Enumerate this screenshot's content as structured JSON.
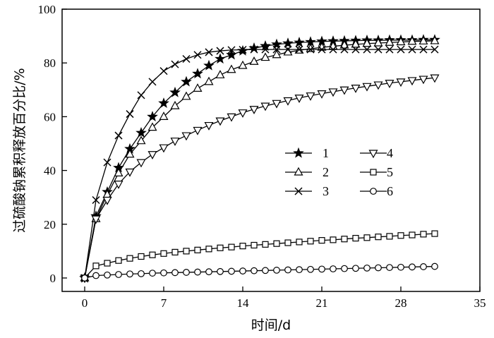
{
  "chart_data": {
    "type": "line",
    "xlabel": "时间/d",
    "ylabel": "过硫酸钠累积释放百分比/%",
    "xlim": [
      -2,
      35
    ],
    "ylim": [
      -5,
      100
    ],
    "xticks": [
      0,
      7,
      14,
      21,
      28,
      35
    ],
    "yticks": [
      0,
      20,
      40,
      60,
      80,
      100
    ],
    "grid": false,
    "legend": "center-right",
    "colors": {
      "line": "#000000",
      "background": "#ffffff"
    },
    "series": [
      {
        "name": "1",
        "marker": "star",
        "x": [
          0,
          1,
          2,
          3,
          4,
          5,
          6,
          7,
          8,
          9,
          10,
          11,
          12,
          13,
          14,
          15,
          16,
          17,
          18,
          19,
          20,
          21,
          22,
          23,
          24,
          25,
          26,
          27,
          28,
          29,
          30,
          31
        ],
        "values": [
          0,
          23,
          32,
          41,
          48,
          54,
          60,
          65,
          69,
          73,
          76,
          79,
          81.5,
          83,
          84.5,
          85.5,
          86.3,
          86.9,
          87.3,
          87.6,
          87.8,
          88,
          88.1,
          88.2,
          88.3,
          88.4,
          88.4,
          88.5,
          88.5,
          88.5,
          88.6,
          88.6
        ]
      },
      {
        "name": "2",
        "marker": "triangle-up",
        "x": [
          0,
          1,
          2,
          3,
          4,
          5,
          6,
          7,
          8,
          9,
          10,
          11,
          12,
          13,
          14,
          15,
          16,
          17,
          18,
          19,
          20,
          21,
          22,
          23,
          24,
          25,
          26,
          27,
          28,
          29,
          30,
          31
        ],
        "values": [
          0,
          22,
          31,
          39,
          46,
          51,
          56,
          60,
          64,
          67.5,
          70.5,
          73,
          75.5,
          77.5,
          79,
          80.5,
          82,
          83,
          84,
          84.7,
          85.3,
          85.8,
          86.2,
          86.6,
          86.9,
          87.2,
          87.4,
          87.6,
          87.8,
          88,
          88.1,
          88.2
        ]
      },
      {
        "name": "3",
        "marker": "x",
        "x": [
          0,
          1,
          2,
          3,
          4,
          5,
          6,
          7,
          8,
          9,
          10,
          11,
          12,
          13,
          14,
          15,
          16,
          17,
          18,
          19,
          20,
          21,
          22,
          23,
          24,
          25,
          26,
          27,
          28,
          29,
          30,
          31
        ],
        "values": [
          0,
          29,
          43,
          53,
          61,
          68,
          73,
          77,
          79.5,
          81.5,
          83,
          84,
          84.5,
          84.8,
          84.9,
          85,
          85,
          85,
          85,
          85,
          85,
          85,
          85,
          85,
          85,
          85,
          85,
          85,
          85,
          85,
          85,
          85
        ]
      },
      {
        "name": "4",
        "marker": "triangle-down",
        "x": [
          0,
          1,
          2,
          3,
          4,
          5,
          6,
          7,
          8,
          9,
          10,
          11,
          12,
          13,
          14,
          15,
          16,
          17,
          18,
          19,
          20,
          21,
          22,
          23,
          24,
          25,
          26,
          27,
          28,
          29,
          30,
          31
        ],
        "values": [
          0,
          22,
          29,
          35,
          39.5,
          43,
          46,
          48.5,
          51,
          53,
          55,
          56.8,
          58.5,
          60,
          61.5,
          62.8,
          64,
          65,
          66,
          67,
          67.8,
          68.6,
          69.3,
          70,
          70.7,
          71.3,
          71.9,
          72.5,
          73,
          73.5,
          74,
          74.5
        ]
      },
      {
        "name": "5",
        "marker": "square",
        "x": [
          0,
          1,
          2,
          3,
          4,
          5,
          6,
          7,
          8,
          9,
          10,
          11,
          12,
          13,
          14,
          15,
          16,
          17,
          18,
          19,
          20,
          21,
          22,
          23,
          24,
          25,
          26,
          27,
          28,
          29,
          30,
          31
        ],
        "values": [
          0,
          4.5,
          5.5,
          6.5,
          7.3,
          8,
          8.6,
          9.1,
          9.6,
          10,
          10.4,
          10.8,
          11.2,
          11.5,
          11.9,
          12.2,
          12.5,
          12.8,
          13.1,
          13.4,
          13.7,
          14,
          14.2,
          14.5,
          14.8,
          15,
          15.3,
          15.5,
          15.8,
          16,
          16.3,
          16.5
        ]
      },
      {
        "name": "6",
        "marker": "circle",
        "x": [
          0,
          1,
          2,
          3,
          4,
          5,
          6,
          7,
          8,
          9,
          10,
          11,
          12,
          13,
          14,
          15,
          16,
          17,
          18,
          19,
          20,
          21,
          22,
          23,
          24,
          25,
          26,
          27,
          28,
          29,
          30,
          31
        ],
        "values": [
          0,
          0.9,
          1.1,
          1.3,
          1.5,
          1.6,
          1.8,
          1.9,
          2,
          2.1,
          2.2,
          2.3,
          2.4,
          2.5,
          2.6,
          2.7,
          2.8,
          2.9,
          3,
          3.1,
          3.2,
          3.3,
          3.4,
          3.5,
          3.6,
          3.7,
          3.8,
          3.9,
          4,
          4.1,
          4.2,
          4.3
        ]
      }
    ]
  }
}
